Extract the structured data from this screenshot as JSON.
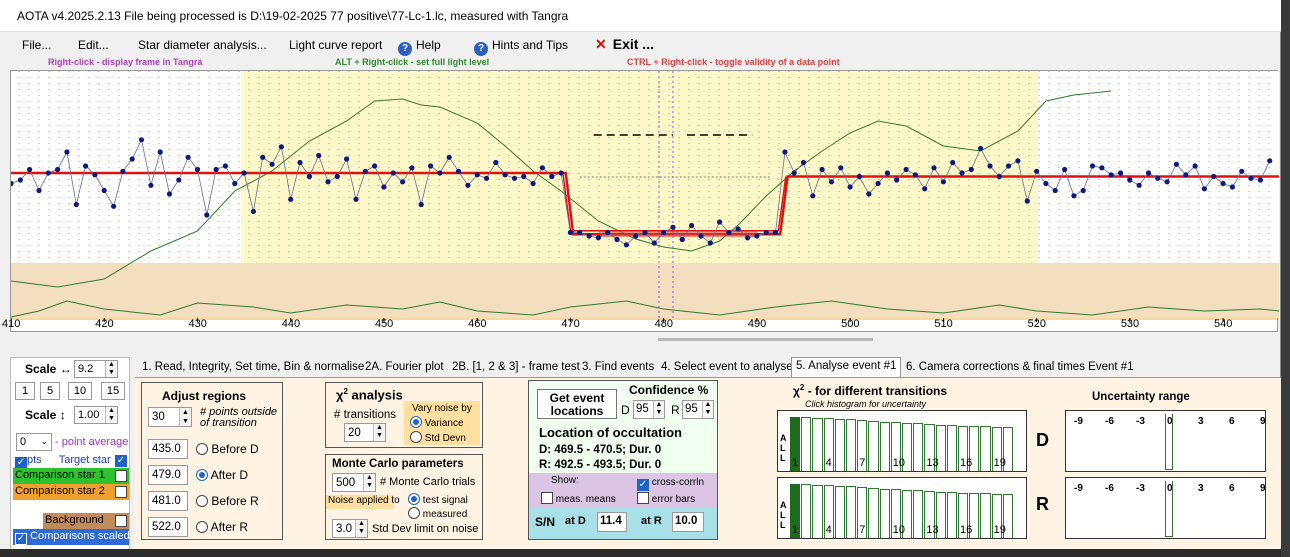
{
  "window": {
    "title": "AOTA v4.2025.2.13    File being processed is D:\\19-02-2025 77 positive\\77-Lc-1.lc, measured with Tangra"
  },
  "menu": {
    "file": "File...",
    "edit": "Edit...",
    "star_diameter": "Star diameter analysis...",
    "light_curve_report": "Light curve report",
    "help": "Help",
    "hints": "Hints and Tips",
    "exit": "Exit ..."
  },
  "hints": {
    "right_click": "Right-click  -  display frame in Tangra",
    "alt_right_click": "ALT + Right-click  -  set full light level",
    "ctrl_right_click": "CTRL + Right-click  -  toggle validity of a data point"
  },
  "chart_data": {
    "type": "line",
    "x_ticks": [
      "410",
      "420",
      "430",
      "440",
      "450",
      "460",
      "470",
      "480",
      "490",
      "500",
      "510",
      "520",
      "530",
      "540"
    ],
    "xlim": [
      410,
      546
    ],
    "colors": {
      "target": "#0a1a80",
      "model": "#e01010",
      "comparison": "#2f7a2f",
      "event_band": "#fff8c8",
      "background_band": "#f3dfc0"
    },
    "event": {
      "D": 470,
      "R": 493
    },
    "target_star": [
      [
        410,
        110
      ],
      [
        411,
        112
      ],
      [
        412,
        118
      ],
      [
        413,
        106
      ],
      [
        414,
        116
      ],
      [
        415,
        118
      ],
      [
        416,
        128
      ],
      [
        417,
        98
      ],
      [
        418,
        120
      ],
      [
        419,
        115
      ],
      [
        420,
        106
      ],
      [
        421,
        97
      ],
      [
        422,
        117
      ],
      [
        423,
        124
      ],
      [
        424,
        135
      ],
      [
        425,
        109
      ],
      [
        426,
        128
      ],
      [
        427,
        104
      ],
      [
        428,
        112
      ],
      [
        429,
        125
      ],
      [
        430,
        118
      ],
      [
        431,
        92
      ],
      [
        432,
        118
      ],
      [
        433,
        120
      ],
      [
        434,
        110
      ],
      [
        435,
        116
      ],
      [
        436,
        94
      ],
      [
        437,
        125
      ],
      [
        438,
        121
      ],
      [
        439,
        131
      ],
      [
        440,
        101
      ],
      [
        441,
        122
      ],
      [
        442,
        114
      ],
      [
        443,
        126
      ],
      [
        444,
        111
      ],
      [
        445,
        114
      ],
      [
        446,
        124
      ],
      [
        447,
        101
      ],
      [
        448,
        117
      ],
      [
        449,
        120
      ],
      [
        450,
        108
      ],
      [
        451,
        116
      ],
      [
        452,
        111
      ],
      [
        453,
        119
      ],
      [
        454,
        98
      ],
      [
        455,
        120
      ],
      [
        456,
        116
      ],
      [
        457,
        125
      ],
      [
        458,
        117
      ],
      [
        459,
        109
      ],
      [
        460,
        115
      ],
      [
        461,
        113
      ],
      [
        462,
        122
      ],
      [
        463,
        115
      ],
      [
        464,
        113
      ],
      [
        465,
        114
      ],
      [
        466,
        110
      ],
      [
        467,
        119
      ],
      [
        468,
        114
      ],
      [
        469,
        116
      ],
      [
        470,
        82
      ],
      [
        471,
        82
      ],
      [
        472,
        80
      ],
      [
        473,
        79
      ],
      [
        474,
        82
      ],
      [
        475,
        78
      ],
      [
        476,
        75
      ],
      [
        477,
        80
      ],
      [
        478,
        82
      ],
      [
        479,
        76
      ],
      [
        480,
        82
      ],
      [
        481,
        85
      ],
      [
        482,
        78
      ],
      [
        483,
        86
      ],
      [
        484,
        80
      ],
      [
        485,
        76
      ],
      [
        486,
        88
      ],
      [
        487,
        82
      ],
      [
        488,
        84
      ],
      [
        489,
        79
      ],
      [
        490,
        80
      ],
      [
        491,
        82
      ],
      [
        492,
        82
      ],
      [
        493,
        128
      ],
      [
        494,
        116
      ],
      [
        495,
        122
      ],
      [
        496,
        103
      ],
      [
        497,
        118
      ],
      [
        498,
        111
      ],
      [
        499,
        119
      ],
      [
        500,
        108
      ],
      [
        501,
        114
      ],
      [
        502,
        104
      ],
      [
        503,
        110
      ],
      [
        504,
        116
      ],
      [
        505,
        112
      ],
      [
        506,
        118
      ],
      [
        507,
        115
      ],
      [
        508,
        107
      ],
      [
        509,
        119
      ],
      [
        510,
        111
      ],
      [
        511,
        122
      ],
      [
        512,
        116
      ],
      [
        513,
        118
      ],
      [
        514,
        130
      ],
      [
        515,
        120
      ],
      [
        516,
        114
      ],
      [
        517,
        120
      ],
      [
        518,
        123
      ],
      [
        519,
        100
      ],
      [
        520,
        117
      ],
      [
        521,
        110
      ],
      [
        522,
        106
      ],
      [
        523,
        118
      ],
      [
        524,
        103
      ],
      [
        525,
        106
      ],
      [
        526,
        120
      ],
      [
        527,
        119
      ],
      [
        528,
        115
      ],
      [
        529,
        116
      ],
      [
        530,
        112
      ],
      [
        531,
        109
      ],
      [
        532,
        116
      ],
      [
        533,
        113
      ],
      [
        534,
        111
      ],
      [
        535,
        121
      ],
      [
        536,
        115
      ],
      [
        537,
        120
      ],
      [
        538,
        107
      ],
      [
        539,
        114
      ],
      [
        540,
        110
      ],
      [
        541,
        108
      ],
      [
        542,
        117
      ],
      [
        543,
        113
      ],
      [
        544,
        112
      ],
      [
        545,
        123
      ]
    ]
  },
  "left": {
    "scale_h_label": "Scale ↔",
    "scale_h_value": "9.2",
    "scale_buttons": [
      "1",
      "5",
      "10",
      "15"
    ],
    "scale_v_label": "Scale ↕",
    "scale_v_value": "1.00",
    "point_average_value": "0",
    "point_average_label": "point average",
    "pts_label": "pts",
    "target_star": "Target star",
    "comp1": "Comparison star 1",
    "comp2": "Comparison star 2",
    "background": "Background",
    "comps_scaled": "Comparisons scaled"
  },
  "tabs": [
    "1.  Read, Integrity, Set time, Bin & normalise",
    "2A. Fourier plot",
    "2B. [1, 2 & 3] - frame test",
    "3. Find events",
    "4. Select event to analyse",
    "5. Analyse event #1",
    "6. Camera corrections & final times Event #1"
  ],
  "adjust": {
    "title": "Adjust regions",
    "points_value": "30",
    "points_label": "# points outside of transition",
    "before_d_value": "435.0",
    "before_d": "Before D",
    "after_d_value": "479.0",
    "after_d": "After D",
    "before_r_value": "481.0",
    "before_r": "Before R",
    "after_r_value": "522.0",
    "after_r": "After R"
  },
  "chi2": {
    "title_prefix": "χ",
    "title_sup": "2",
    "title_suffix": " analysis",
    "transitions_label": "# transitions",
    "transitions_value": "20",
    "vary_noise": "Vary noise by",
    "variance": "Variance",
    "std_devn": "Std Devn"
  },
  "monte_carlo": {
    "title": "Monte Carlo parameters",
    "trials_value": "500",
    "trials_label": "# Monte Carlo trials",
    "noise_applied": "Noise applied to",
    "test_signal": "test signal",
    "measured": "measured",
    "std_dev_value": "3.0",
    "std_dev_label": "Std Dev limit on noise"
  },
  "location": {
    "get_event": "Get event locations",
    "confidence": "Confidence %",
    "d_label": "D",
    "d_value": "95",
    "r_label": "R",
    "r_value": "95",
    "title": "Location of occultation",
    "d_line": "D: 469.5 - 470.5; Dur. 0",
    "r_line": "R: 492.5 - 493.5; Dur. 0",
    "show": "Show:",
    "meas_means": "meas. means",
    "cross_corrln": "cross-corrln",
    "error_bars": "error bars",
    "sn": "S/N",
    "at_d": "at D",
    "sn_d": "11.4",
    "at_r": "at R",
    "sn_r": "10.0"
  },
  "hist": {
    "title_prefix": "χ",
    "title_sup": "2",
    "title_suffix": " - for different transitions",
    "subtitle": "Click histogram for uncertainty",
    "all_label": [
      "A",
      "L",
      "L"
    ],
    "numbers": [
      "1",
      "4",
      "7",
      "10",
      "13",
      "16",
      "19"
    ],
    "d": "D",
    "r": "R",
    "d_levels": [
      0.97,
      0.96,
      0.95,
      0.94,
      0.93,
      0.92,
      0.91,
      0.89,
      0.88,
      0.87,
      0.86,
      0.85,
      0.84,
      0.83,
      0.82,
      0.81,
      0.8,
      0.8,
      0.79,
      0.78
    ],
    "r_levels": [
      0.97,
      0.96,
      0.95,
      0.94,
      0.93,
      0.92,
      0.91,
      0.89,
      0.88,
      0.87,
      0.86,
      0.85,
      0.84,
      0.83,
      0.82,
      0.81,
      0.8,
      0.8,
      0.79,
      0.78
    ]
  },
  "uncertainty": {
    "title": "Uncertainty range",
    "labels": [
      "-9",
      "-6",
      "-3",
      "0",
      "3",
      "6",
      "9"
    ]
  }
}
